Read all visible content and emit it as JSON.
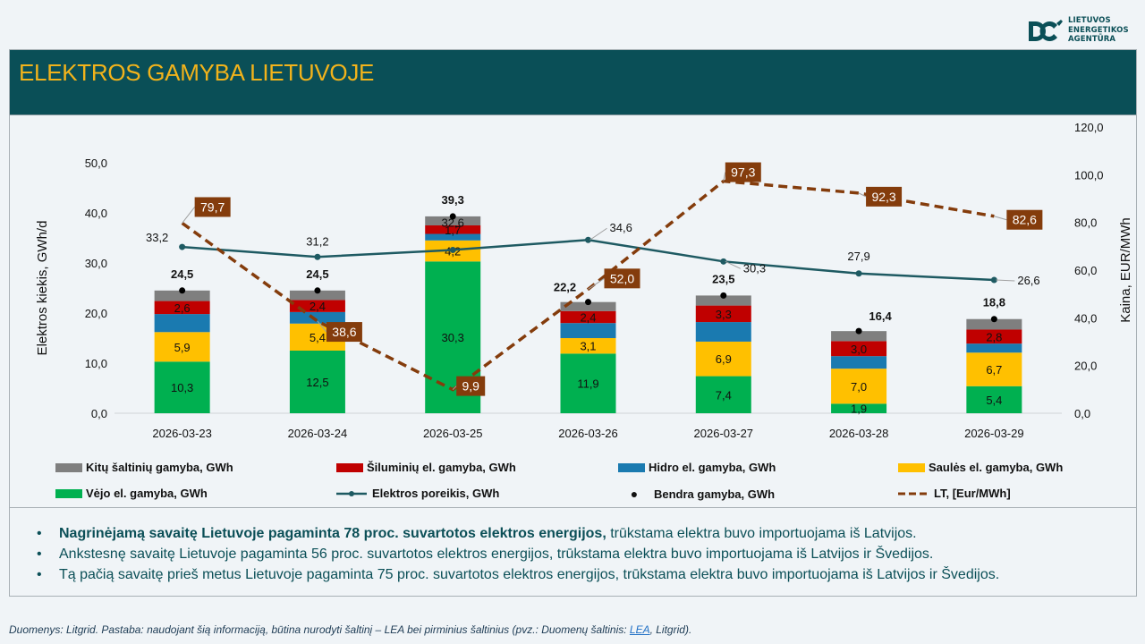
{
  "logo": {
    "lines": [
      "LIETUVOS",
      "ENERGETIKOS",
      "AGENTŪRA"
    ]
  },
  "header": {
    "title": "ELEKTROS GAMYBA LIETUVOJE"
  },
  "colors": {
    "header_bg": "#0a4f57",
    "title": "#f2b31b",
    "other": "#7f7f7f",
    "thermal": "#c00000",
    "hydro": "#1a7ab0",
    "solar": "#ffc000",
    "wind": "#00b050",
    "demand": "#1e5a62",
    "price": "#843c0c",
    "total": "#000000"
  },
  "chart_data": {
    "type": "bar",
    "title": "ELEKTROS GAMYBA LIETUVOJE",
    "categories": [
      "2026-03-23",
      "2026-03-24",
      "2026-03-25",
      "2026-03-26",
      "2026-03-27",
      "2026-03-28",
      "2026-03-29"
    ],
    "ylabel": "Elektros kiekis, GWh/d",
    "ylabel_right": "Kaina, EUR/MWh",
    "ylim": [
      0,
      50
    ],
    "ylim_right": [
      0,
      120
    ],
    "yticks": [
      "0,0",
      "10,0",
      "20,0",
      "30,0",
      "40,0",
      "50,0"
    ],
    "yticks_right": [
      "0,0",
      "20,0",
      "40,0",
      "60,0",
      "80,0",
      "100,0",
      "120,0"
    ],
    "grid": false,
    "legend_position": "bottom",
    "stacked_series": [
      {
        "key": "wind",
        "name": "Vėjo el. gamyba, GWh",
        "values": [
          10.3,
          12.5,
          30.3,
          11.9,
          7.4,
          1.9,
          5.4
        ],
        "labels": [
          "10,3",
          "12,5",
          "30,3",
          "11,9",
          "7,4",
          "1,9",
          "5,4"
        ]
      },
      {
        "key": "solar",
        "name": "Saulės el. gamyba, GWh",
        "values": [
          5.9,
          5.4,
          4.2,
          3.1,
          6.9,
          7.0,
          6.7
        ],
        "labels": [
          "5,9",
          "5,4",
          "4,2",
          "3,1",
          "6,9",
          "7,0",
          "6,7"
        ]
      },
      {
        "key": "hydro",
        "name": "Hidro el. gamyba, GWh",
        "values": [
          3.6,
          2.3,
          1.3,
          3.0,
          3.9,
          2.5,
          1.8
        ],
        "labels": [
          "",
          "",
          "",
          "",
          "",
          "",
          ""
        ]
      },
      {
        "key": "thermal",
        "name": "Šiluminių el. gamyba, GWh",
        "values": [
          2.6,
          2.4,
          1.7,
          2.4,
          3.3,
          3.0,
          2.8
        ],
        "labels": [
          "2,6",
          "2,4",
          "1,7",
          "2,4",
          "3,3",
          "3,0",
          "2,8"
        ]
      },
      {
        "key": "other",
        "name": "Kitų šaltinių gamyba,  GWh",
        "values": [
          2.1,
          1.9,
          1.8,
          1.8,
          2.0,
          2.0,
          2.1
        ],
        "labels": [
          "",
          "",
          "",
          "",
          "",
          "",
          ""
        ]
      }
    ],
    "total": {
      "name": "Bendra gamyba, GWh",
      "values": [
        24.5,
        24.5,
        39.3,
        22.2,
        23.5,
        16.4,
        18.8
      ],
      "labels": [
        "24,5",
        "24,5",
        "39,3",
        "22,2",
        "23,5",
        "16,4",
        "18,8"
      ]
    },
    "demand": {
      "name": "Elektros poreikis, GWh",
      "values": [
        33.2,
        31.2,
        32.6,
        34.6,
        30.3,
        27.9,
        26.6
      ],
      "labels": [
        "33,2",
        "31,2",
        "32,6",
        "34,6",
        "30,3",
        "27,9",
        "26,6"
      ]
    },
    "price": {
      "name": "LT, [Eur/MWh]",
      "axis": "right",
      "values": [
        79.7,
        38.6,
        9.9,
        52.0,
        97.3,
        92.3,
        82.6
      ],
      "labels": [
        "79,7",
        "38,6",
        "9,9",
        "52,0",
        "97,3",
        "92,3",
        "82,6"
      ]
    }
  },
  "legend": [
    {
      "key": "other",
      "label": "Kitų šaltinių gamyba,  GWh"
    },
    {
      "key": "thermal",
      "label": "Šiluminių el. gamyba, GWh"
    },
    {
      "key": "hydro",
      "label": "Hidro el. gamyba, GWh"
    },
    {
      "key": "solar",
      "label": "Saulės el. gamyba, GWh"
    },
    {
      "key": "wind",
      "label": "Vėjo el. gamyba, GWh"
    },
    {
      "key": "demand",
      "label": "Elektros poreikis, GWh"
    },
    {
      "key": "total",
      "label": "Bendra gamyba, GWh"
    },
    {
      "key": "price",
      "label": "LT, [Eur/MWh]"
    }
  ],
  "notes": [
    {
      "bold": "Nagrinėjamą savaitę Lietuvoje pagaminta 78 proc. suvartotos elektros energijos,",
      "rest": " trūkstama elektra buvo importuojama iš Latvijos."
    },
    {
      "bold": "",
      "rest": "Ankstesnę savaitę Lietuvoje pagaminta 56 proc. suvartotos elektros energijos, trūkstama elektra buvo importuojama iš Latvijos ir Švedijos."
    },
    {
      "bold": "",
      "rest": "Tą pačią savaitę prieš metus Lietuvoje pagaminta 75 proc. suvartotos elektros energijos, trūkstama elektra buvo importuojama iš Latvijos ir Švedijos."
    }
  ],
  "footer": {
    "before": "Duomenys: Litgrid. Pastaba: naudojant šią informaciją, būtina nurodyti šaltinį – LEA bei pirminius šaltinius (pvz.: Duomenų šaltinis: ",
    "link": "LEA",
    "after": ", Litgrid)."
  }
}
